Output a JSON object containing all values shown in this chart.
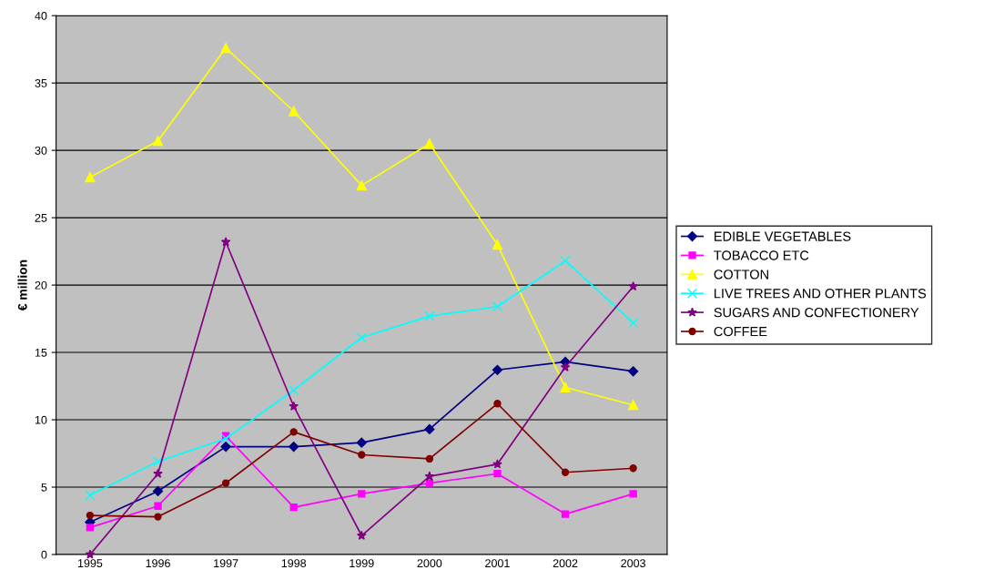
{
  "chart_data": {
    "type": "line",
    "ylabel": "€ million",
    "categories": [
      "1995",
      "1996",
      "1997",
      "1998",
      "1999",
      "2000",
      "2001",
      "2002",
      "2003"
    ],
    "series": [
      {
        "name": "EDIBLE VEGETABLES",
        "color": "#000080",
        "marker": "diamond",
        "values": [
          2.4,
          4.7,
          8.0,
          8.0,
          8.3,
          9.3,
          13.7,
          14.3,
          13.6
        ]
      },
      {
        "name": "TOBACCO ETC",
        "color": "#ff00ff",
        "marker": "square",
        "values": [
          2.0,
          3.6,
          8.8,
          3.5,
          4.5,
          5.3,
          6.0,
          3.0,
          4.5
        ]
      },
      {
        "name": "COTTON",
        "color": "#ffff00",
        "marker": "triangle",
        "values": [
          28.0,
          30.7,
          37.6,
          32.9,
          27.4,
          30.5,
          23.0,
          12.4,
          11.1
        ]
      },
      {
        "name": "LIVE TREES AND OTHER PLANTS",
        "color": "#00ffff",
        "marker": "cross",
        "values": [
          4.4,
          6.9,
          8.6,
          12.2,
          16.1,
          17.7,
          18.4,
          21.8,
          17.2
        ]
      },
      {
        "name": "SUGARS AND CONFECTIONERY",
        "color": "#800080",
        "marker": "star",
        "values": [
          0.0,
          6.0,
          23.2,
          11.0,
          1.4,
          5.8,
          6.7,
          13.9,
          19.9
        ]
      },
      {
        "name": "COFFEE",
        "color": "#800000",
        "marker": "circle",
        "values": [
          2.9,
          2.8,
          5.3,
          9.1,
          7.4,
          7.1,
          11.2,
          6.1,
          6.4
        ]
      }
    ],
    "ylim": [
      0,
      40
    ],
    "yticks": [
      0,
      5,
      10,
      15,
      20,
      25,
      30,
      35,
      40
    ],
    "grid": "y",
    "legend": "right",
    "line_style": "solid"
  }
}
